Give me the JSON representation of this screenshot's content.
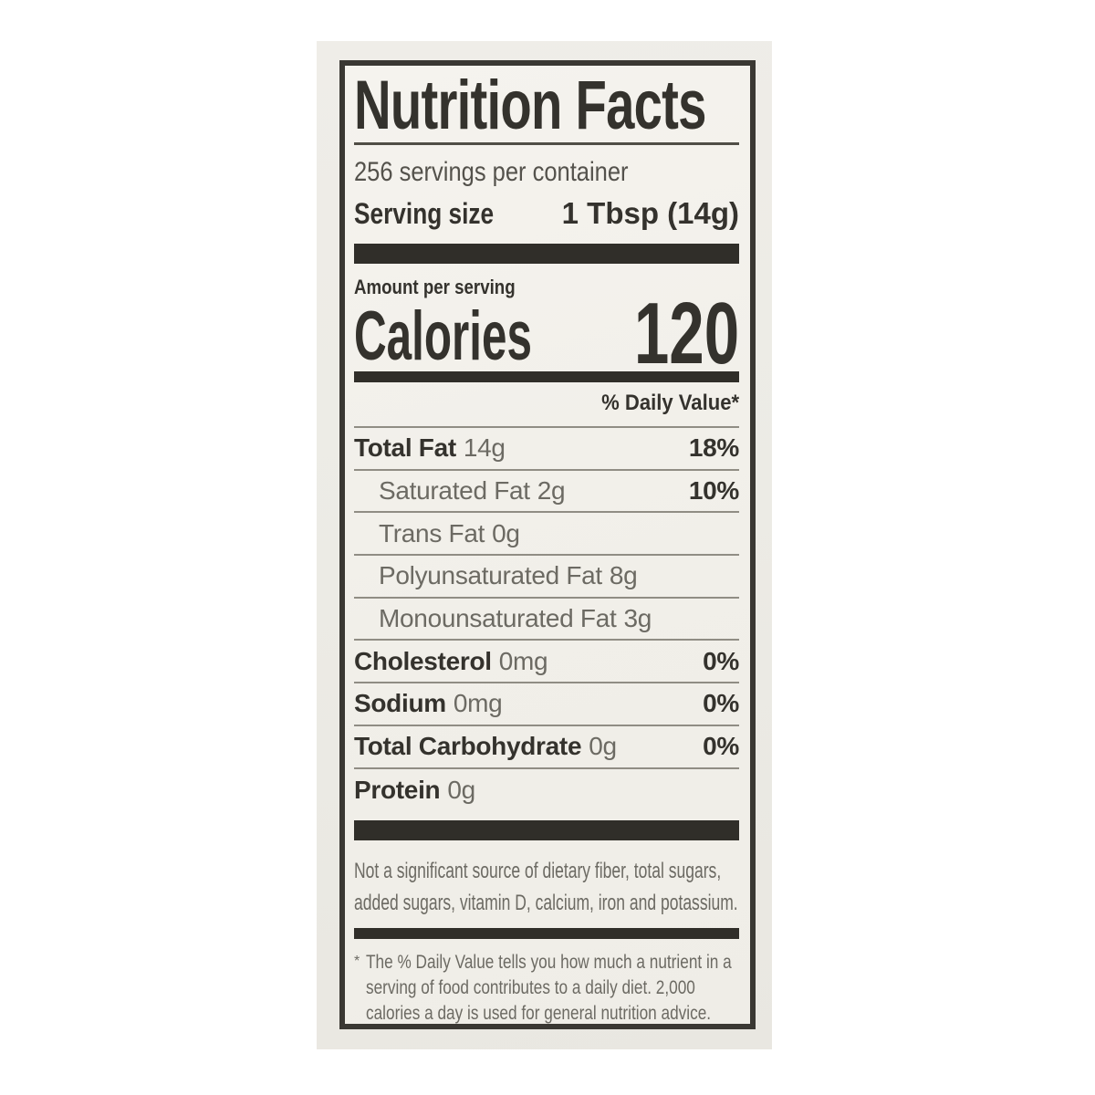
{
  "label": {
    "title": "Nutrition Facts",
    "servings_per_container": "256 servings per container",
    "serving_size": {
      "label": "Serving size",
      "value": "1 Tbsp (14g)"
    },
    "amount_per_serving": "Amount per serving",
    "calories": {
      "label": "Calories",
      "value": "120"
    },
    "daily_value_header": "% Daily Value*",
    "nutrients": [
      {
        "name": "Total Fat",
        "amount": "14g",
        "dv": "18%"
      },
      {
        "name": "Saturated Fat",
        "amount": "2g",
        "dv": "10%"
      },
      {
        "name": "Trans Fat",
        "amount": "0g",
        "dv": ""
      },
      {
        "name": "Polyunsaturated Fat",
        "amount": "8g",
        "dv": ""
      },
      {
        "name": "Monounsaturated Fat",
        "amount": "3g",
        "dv": ""
      },
      {
        "name": "Cholesterol",
        "amount": "0mg",
        "dv": "0%"
      },
      {
        "name": "Sodium",
        "amount": "0mg",
        "dv": "0%"
      },
      {
        "name": "Total Carbohydrate",
        "amount": "0g",
        "dv": "0%"
      },
      {
        "name": "Protein",
        "amount": "0g",
        "dv": ""
      }
    ],
    "not_significant_lines": [
      "Not a significant source of dietary fiber, total sugars,",
      "added sugars, vitamin D, calcium, iron and potassium."
    ],
    "footnote": {
      "marker": "*",
      "lines": [
        "The % Daily Value tells you how much a nutrient in a",
        "serving of food contributes to a daily diet. 2,000",
        "calories a day is used for general nutrition advice."
      ]
    }
  },
  "colors": {
    "page_background": "#ffffff",
    "photo_background": "#ecebe5",
    "paper": "#f2f0ea",
    "ink": "#34322d",
    "ink_gray": "#6c6a63",
    "hairline": "#908d84",
    "bar": "#302e29"
  }
}
